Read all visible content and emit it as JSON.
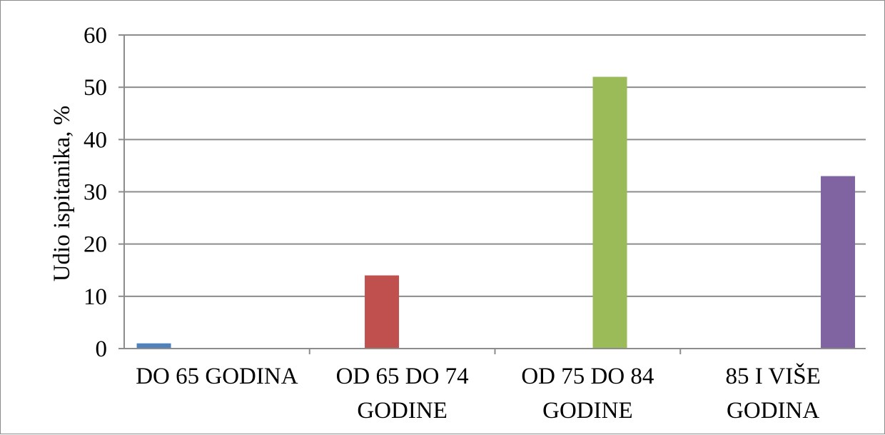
{
  "chart_data": {
    "type": "bar",
    "categories": [
      [
        "DO 65 GODINA"
      ],
      [
        "OD 65 DO 74",
        "GODINE"
      ],
      [
        "OD 75 DO 84",
        "GODINE"
      ],
      [
        "85 I VIŠE",
        "GODINA"
      ]
    ],
    "values": [
      1,
      14,
      52,
      33
    ],
    "colors": [
      "#4f81bd",
      "#c0504d",
      "#9bbb59",
      "#8064a2"
    ],
    "title": "",
    "xlabel": "",
    "ylabel": "Udio ispitanika, %",
    "ylim": [
      0,
      60
    ],
    "yticks": [
      0,
      10,
      20,
      30,
      40,
      50,
      60
    ],
    "grid": true,
    "legend": "none"
  }
}
